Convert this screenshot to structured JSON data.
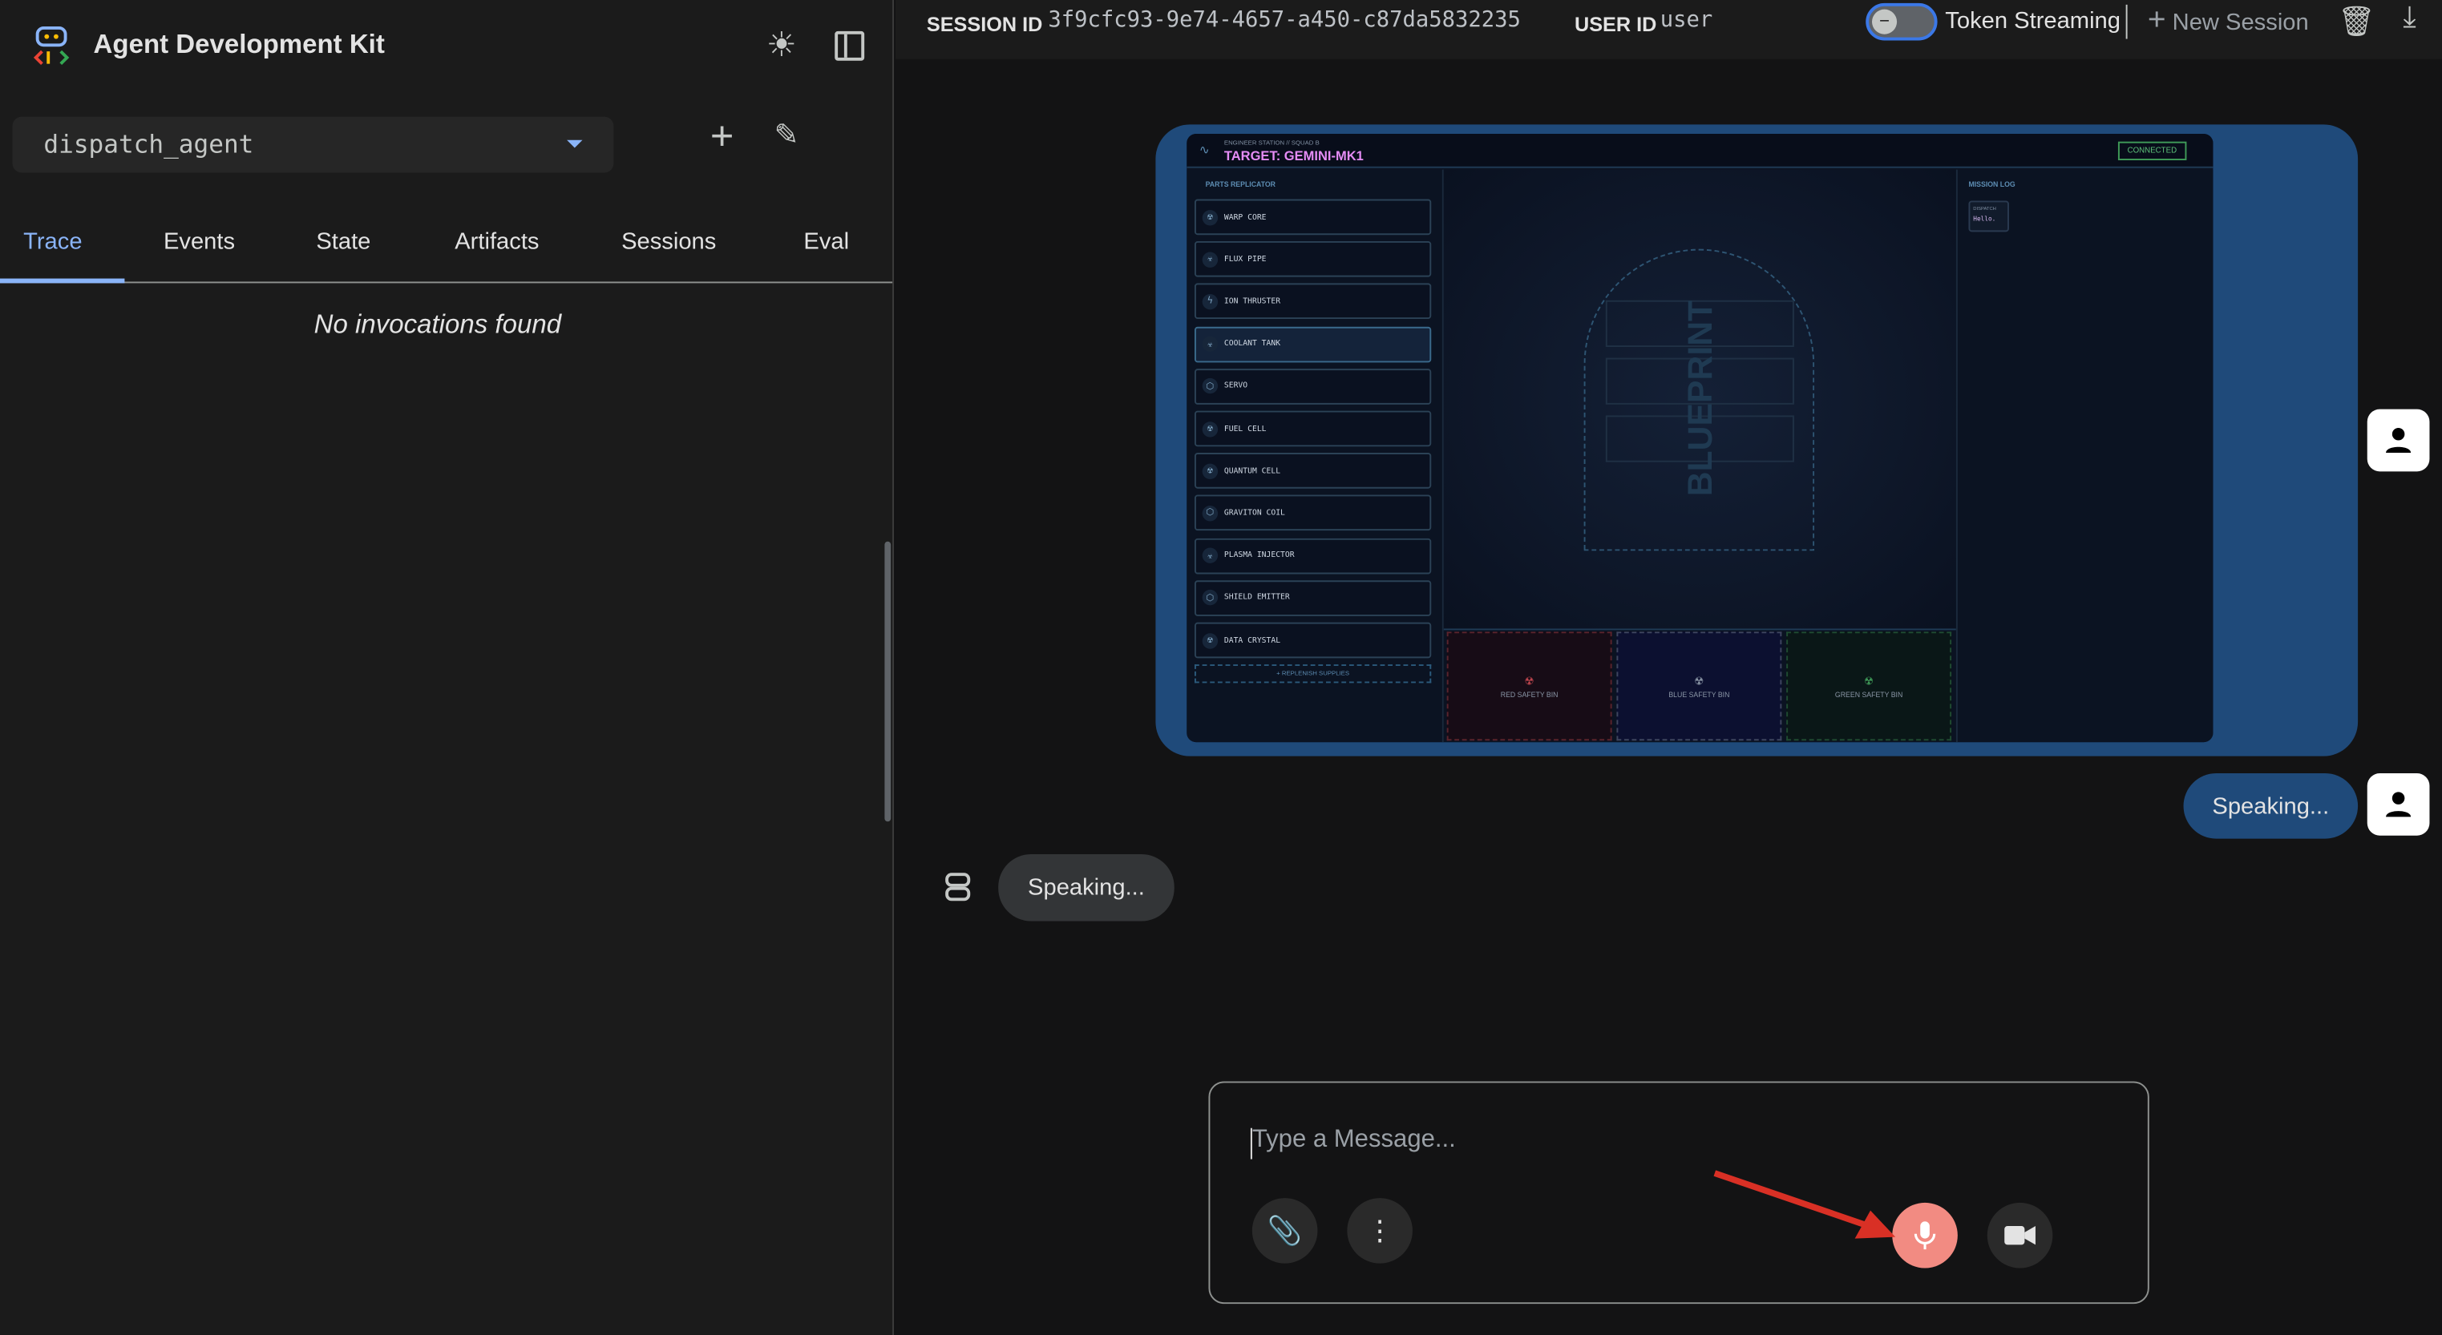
{
  "app": {
    "title": "Agent Development Kit"
  },
  "agent_select": {
    "value": "dispatch_agent"
  },
  "tabs": [
    {
      "label": "Trace",
      "active": true
    },
    {
      "label": "Events"
    },
    {
      "label": "State"
    },
    {
      "label": "Artifacts"
    },
    {
      "label": "Sessions"
    },
    {
      "label": "Eval"
    }
  ],
  "trace": {
    "empty_text": "No invocations found"
  },
  "header": {
    "session_label": "SESSION ID",
    "session_id": "3f9cfc93-9e74-4657-a450-c87da5832235",
    "user_label": "USER ID",
    "user_id": "user",
    "token_streaming": "Token Streaming",
    "token_streaming_on": false,
    "new_session": "New Session"
  },
  "chat": {
    "user_bubble": "Speaking...",
    "agent_bubble": "Speaking..."
  },
  "input": {
    "placeholder": "Type a Message..."
  },
  "colors": {
    "accent": "#8ab4f8",
    "user_bubble": "#1f4a7a",
    "mic_active": "#f28b82",
    "annotation_arrow": "#d93025"
  },
  "embedded": {
    "station": "ENGINEER STATION // SQUAD B",
    "target": "TARGET: GEMINI-MK1",
    "status": "CONNECTED",
    "parts_title": "PARTS REPLICATOR",
    "parts": [
      {
        "label": "WARP CORE",
        "icon": "radiation"
      },
      {
        "label": "FLUX PIPE",
        "icon": "biohazard"
      },
      {
        "label": "ION THRUSTER",
        "icon": "bolt"
      },
      {
        "label": "COOLANT TANK",
        "icon": "biohazard"
      },
      {
        "label": "SERVO",
        "icon": "cube"
      },
      {
        "label": "FUEL CELL",
        "icon": "radiation"
      },
      {
        "label": "QUANTUM CELL",
        "icon": "radiation"
      },
      {
        "label": "GRAVITON COIL",
        "icon": "cube"
      },
      {
        "label": "PLASMA INJECTOR",
        "icon": "biohazard"
      },
      {
        "label": "SHIELD EMITTER",
        "icon": "cube"
      },
      {
        "label": "DATA CRYSTAL",
        "icon": "radiation"
      }
    ],
    "replenish": "+ REPLENISH SUPPLIES",
    "blueprint": "BLUEPRINT",
    "bins": [
      {
        "label": "RED SAFETY BIN",
        "color": "#c0464e"
      },
      {
        "label": "BLUE SAFETY BIN",
        "color": "#8a96a6"
      },
      {
        "label": "GREEN SAFETY BIN",
        "color": "#3f9a58"
      }
    ],
    "log_title": "MISSION LOG",
    "log": [
      {
        "sender": "DISPATCH",
        "text": "Hello."
      }
    ]
  }
}
